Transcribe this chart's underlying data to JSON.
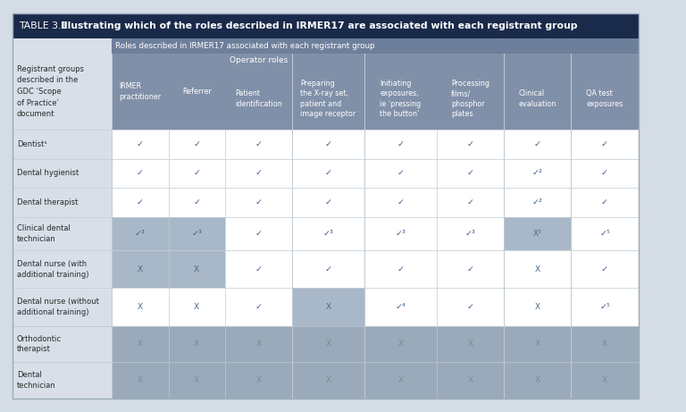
{
  "title_prefix": "TABLE 3.1 ",
  "title_bold": "Illustrating which of the roles described in IRMER17 are associated with each registrant group",
  "subtitle": "Roles described in IRMER17 associated with each registrant group",
  "col_group_header": "Operator roles",
  "header_col0": "Registrant groups\ndescribed in the\nGDC ‘Scope\nof Practice’\ndocument",
  "col_headers": [
    "IRMER\npractitioner",
    "Referrer",
    "Patient\nidentification",
    "Preparing\nthe X-ray set,\npatient and\nimage receptor",
    "Initiating\nexposures,\nie ‘pressing\nthe button’",
    "Processing\nfilms/\nphosphor\nplates",
    "Clinical\nevaluation",
    "QA test\nexposures"
  ],
  "rows": [
    {
      "label": "Dentist¹",
      "values": [
        "✓",
        "✓",
        "✓",
        "✓",
        "✓",
        "✓",
        "✓",
        "✓"
      ],
      "shade": "white"
    },
    {
      "label": "Dental hygienist",
      "values": [
        "✓",
        "✓",
        "✓",
        "✓",
        "✓",
        "✓",
        "✓²",
        "✓"
      ],
      "shade": "white"
    },
    {
      "label": "Dental therapist",
      "values": [
        "✓",
        "✓",
        "✓",
        "✓",
        "✓",
        "✓",
        "✓²",
        "✓"
      ],
      "shade": "white"
    },
    {
      "label": "Clinical dental\ntechnician",
      "values": [
        "✓³",
        "✓³",
        "✓",
        "✓³",
        "✓³",
        "✓³",
        "X³",
        "✓⁵"
      ],
      "shade": "white"
    },
    {
      "label": "Dental nurse (with\nadditional training)",
      "values": [
        "X",
        "X",
        "✓",
        "✓",
        "✓",
        "✓",
        "X",
        "✓"
      ],
      "shade": "white"
    },
    {
      "label": "Dental nurse (without\nadditional training)",
      "values": [
        "X",
        "X",
        "✓",
        "X",
        "✓⁴",
        "✓",
        "X",
        "✓⁵"
      ],
      "shade": "white"
    },
    {
      "label": "Orthodontic\ntherapist",
      "values": [
        "X",
        "X",
        "X",
        "X",
        "X",
        "X",
        "X",
        "X"
      ],
      "shade": "medium_blue"
    },
    {
      "label": "Dental\ntechnician",
      "values": [
        "X",
        "X",
        "X",
        "X",
        "X",
        "X",
        "X",
        "X"
      ],
      "shade": "medium_blue"
    }
  ],
  "colors": {
    "title_bg": "#1a2a4a",
    "subtitle_bg": "#6d7f9a",
    "header_bg": "#8090a8",
    "operator_label_bg": "#8090a8",
    "white_row": "#ffffff",
    "medium_blue_row": "#9aaabb",
    "col0_bg": "#d8dfe8",
    "col0_header_bg": "#d8dfe8",
    "border_light": "#c0cad4",
    "check_color": "#3a5a8a",
    "x_color": "#4a6a8a",
    "text_dark": "#2a2a2a",
    "text_header_dark": "#2a2a2a",
    "text_white": "#ffffff",
    "shaded_cell": "#a8b8c8",
    "bg_outer": "#d4dce6"
  },
  "special_cells": {
    "3_1": "#a8b8c8",
    "3_2": "#a8b8c8",
    "3_7": "#a8b8c8",
    "4_1": "#a8b8c8",
    "4_2": "#a8b8c8",
    "5_4": "#a8b8c8"
  }
}
